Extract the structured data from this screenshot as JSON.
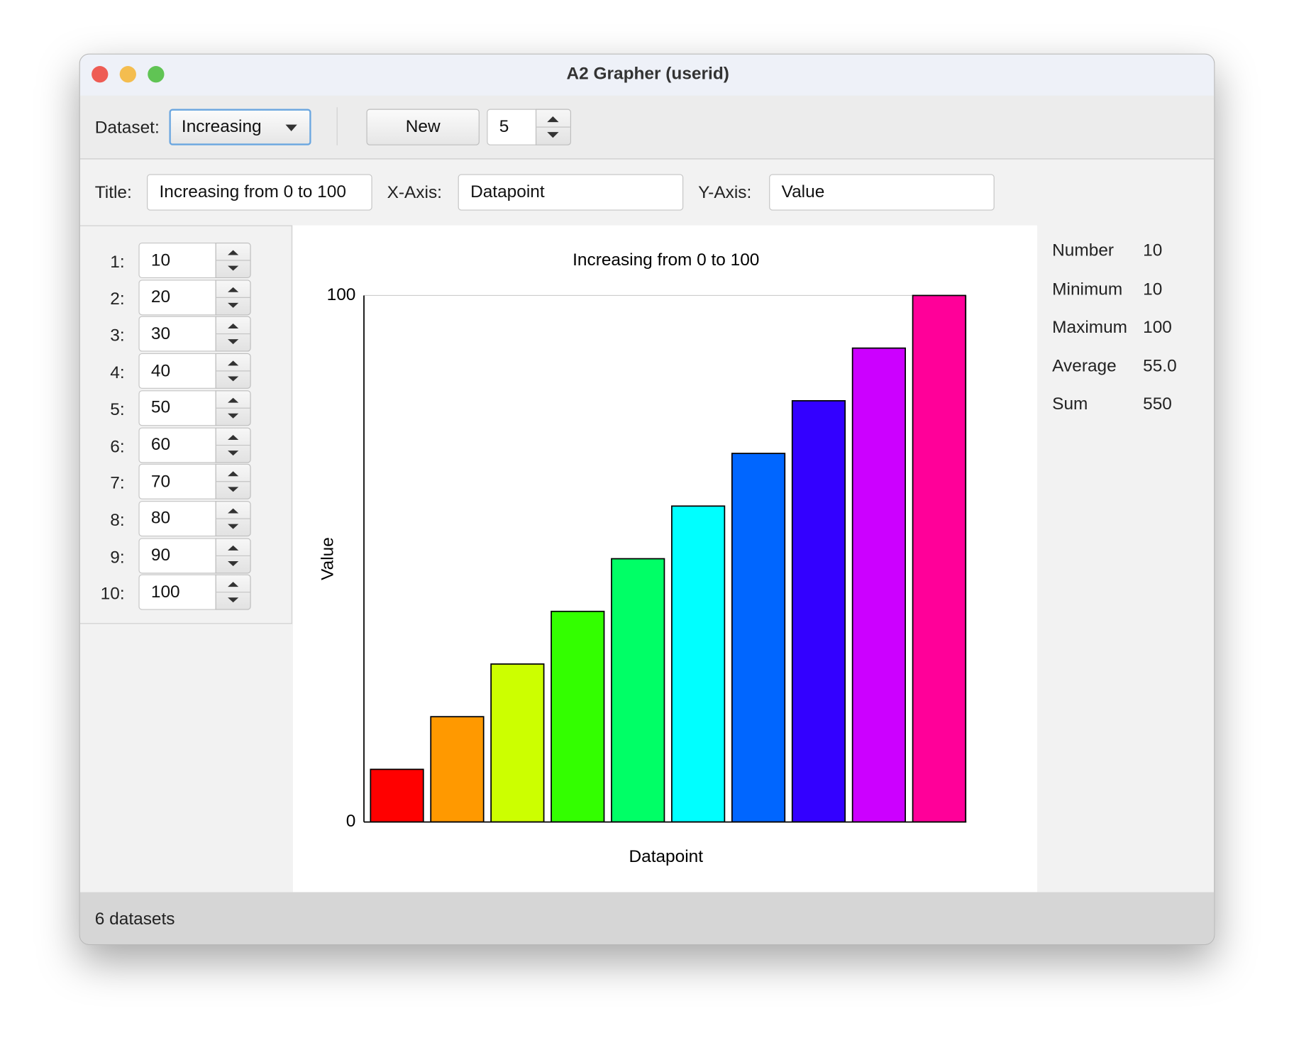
{
  "window": {
    "title": "A2 Grapher (userid)"
  },
  "toolbar": {
    "dataset_label": "Dataset:",
    "dataset": "Increasing",
    "new_button": "New",
    "count": 5
  },
  "fields": {
    "title_label": "Title:",
    "x_axis_label": "X-Axis:",
    "y_axis_label": "Y-Axis:"
  },
  "data_list": {
    "labels": [
      "1:",
      "2:",
      "3:",
      "4:",
      "5:",
      "6:",
      "7:",
      "8:",
      "9:",
      "10:"
    ]
  },
  "chart": {
    "type": "bar",
    "title": "Increasing from 0 to 100",
    "x_label": "Datapoint",
    "y_label": "Value",
    "values": [
      10,
      20,
      30,
      40,
      50,
      60,
      70,
      80,
      90,
      100
    ],
    "colors": [
      "#ff0000",
      "#ff9900",
      "#ccff00",
      "#33ff00",
      "#00ff66",
      "#00ffff",
      "#0066ff",
      "#3300ff",
      "#cc00ff",
      "#ff0099"
    ],
    "ylim": [
      0,
      100
    ],
    "yticks": [
      0,
      100
    ]
  },
  "stats": {
    "rows": [
      {
        "label": "Number",
        "value": 10
      },
      {
        "label": "Minimum",
        "value": 10
      },
      {
        "label": "Maximum",
        "value": 100
      },
      {
        "label": "Average",
        "value": "55.0"
      },
      {
        "label": "Sum",
        "value": 550
      }
    ]
  },
  "status": "6 datasets"
}
